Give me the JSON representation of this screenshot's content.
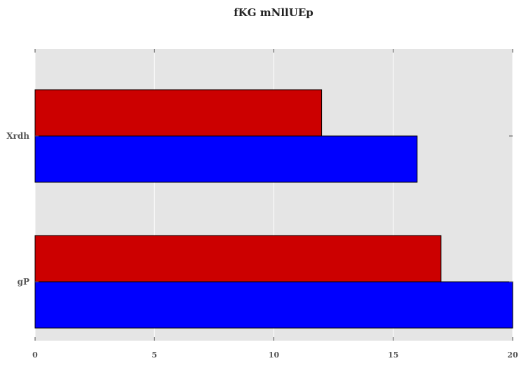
{
  "chart_data": {
    "type": "bar",
    "orientation": "horizontal",
    "title": "fKG mNllUEp",
    "xlabel": "",
    "ylabel": "",
    "categories": [
      "gP",
      "Xrdh"
    ],
    "series": [
      {
        "values": [
          20,
          16
        ],
        "color": "#0000ff"
      },
      {
        "values": [
          17,
          12
        ],
        "color": "#cc0000"
      }
    ],
    "xlim": [
      0,
      20
    ],
    "xticks": [
      0,
      5,
      10,
      15,
      20
    ],
    "grid": true,
    "background": "#e5e5e5",
    "gridColor": "#ffffff"
  }
}
